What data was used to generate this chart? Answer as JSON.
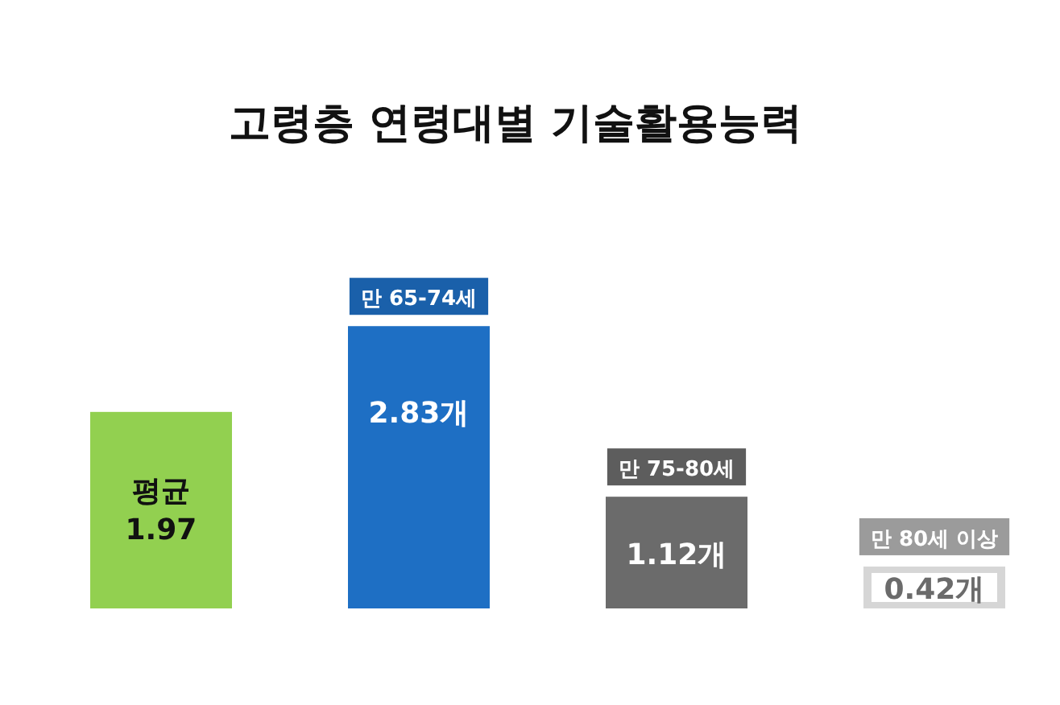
{
  "chart_data": {
    "type": "bar",
    "title": "고령층 연령대별 기술활용능력",
    "categories": [
      "평균",
      "만 65-74세",
      "만 75-80세",
      "만 80세 이상"
    ],
    "values": [
      1.97,
      2.83,
      1.12,
      0.42
    ],
    "colors": [
      "#92d050",
      "#1e6fc4",
      "#6b6b6b",
      "#d6d6d6"
    ],
    "value_labels": [
      "1.97",
      "2.83개",
      "1.12개",
      "0.42개"
    ]
  }
}
